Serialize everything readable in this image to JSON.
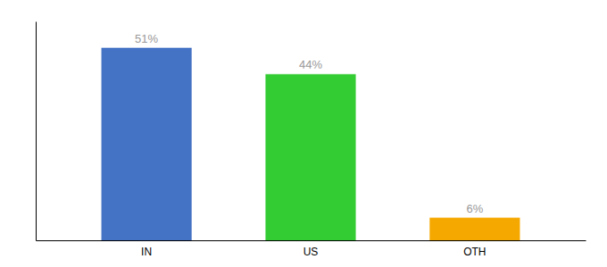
{
  "chart_data": {
    "type": "bar",
    "categories": [
      "IN",
      "US",
      "OTH"
    ],
    "values": [
      51,
      44,
      6
    ],
    "value_labels": [
      "51%",
      "44%",
      "6%"
    ],
    "colors": [
      "#4472c4",
      "#33cc33",
      "#f5a800"
    ],
    "ylim": [
      0,
      58
    ],
    "data_labels": true,
    "tick_labels": "x",
    "grid": false
  }
}
